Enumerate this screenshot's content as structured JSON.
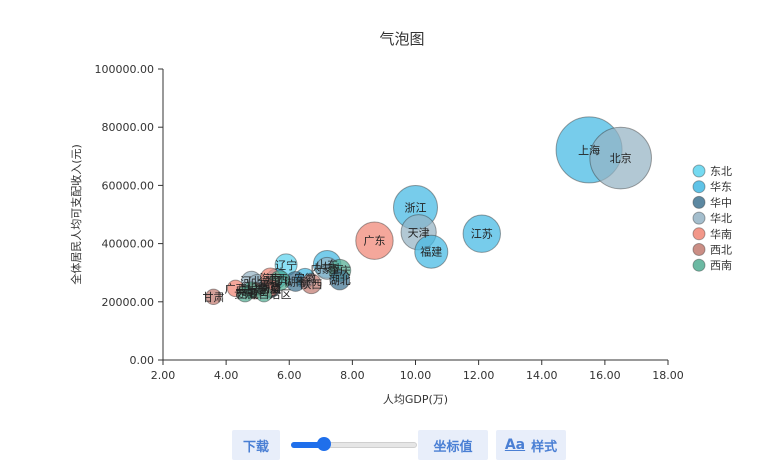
{
  "toolbar": {
    "download_label": "下载",
    "coord_label": "坐标值",
    "style_icon": "Aa",
    "style_label": "样式",
    "slider_value": 0.25
  },
  "chart_data": {
    "type": "scatter",
    "title": "气泡图",
    "xlabel": "人均GDP(万)",
    "ylabel": "全体居民人均可支配收入(元)",
    "xlim": [
      2,
      18
    ],
    "ylim": [
      0,
      100000
    ],
    "xticks": [
      "2.00",
      "4.00",
      "6.00",
      "8.00",
      "10.00",
      "12.00",
      "14.00",
      "16.00",
      "18.00"
    ],
    "yticks": [
      "0.00",
      "20000.00",
      "40000.00",
      "60000.00",
      "80000.00",
      "100000.00"
    ],
    "legend_position": "right",
    "grid": false,
    "series": [
      {
        "name": "东北",
        "color": "#5dd3ee",
        "points": [
          {
            "label": "辽宁",
            "x": 5.9,
            "y": 32700,
            "size": 1.0
          }
        ]
      },
      {
        "name": "华东",
        "color": "#43b8e3",
        "points": [
          {
            "label": "上海",
            "x": 15.5,
            "y": 72200,
            "size": 3.0
          },
          {
            "label": "浙江",
            "x": 10.0,
            "y": 52400,
            "size": 2.0
          },
          {
            "label": "江苏",
            "x": 12.1,
            "y": 43400,
            "size": 1.7
          },
          {
            "label": "福建",
            "x": 10.5,
            "y": 37200,
            "size": 1.5
          },
          {
            "label": "山东",
            "x": 7.2,
            "y": 32900,
            "size": 1.25
          },
          {
            "label": "安徽",
            "x": 6.5,
            "y": 28100,
            "size": 0.9
          },
          {
            "label": "江西",
            "x": 5.6,
            "y": 28000,
            "size": 0.9
          }
        ]
      },
      {
        "name": "华中",
        "color": "#3f7391",
        "points": [
          {
            "label": "湖北",
            "x": 7.6,
            "y": 27500,
            "size": 0.9
          },
          {
            "label": "湖南",
            "x": 6.2,
            "y": 27000,
            "size": 0.9
          },
          {
            "label": "河南",
            "x": 5.4,
            "y": 24800,
            "size": 0.9
          }
        ]
      },
      {
        "name": "华北",
        "color": "#94b3c4",
        "points": [
          {
            "label": "北京",
            "x": 16.5,
            "y": 69400,
            "size": 2.8
          },
          {
            "label": "天津",
            "x": 10.1,
            "y": 43900,
            "size": 1.6
          },
          {
            "label": "内蒙古",
            "x": 7.2,
            "y": 31500,
            "size": 1.0
          },
          {
            "label": "河北",
            "x": 4.8,
            "y": 27100,
            "size": 0.9
          },
          {
            "label": "山西",
            "x": 5.0,
            "y": 26000,
            "size": 0.9
          }
        ]
      },
      {
        "name": "华南",
        "color": "#f08574",
        "points": [
          {
            "label": "广东",
            "x": 8.7,
            "y": 41000,
            "size": 1.7
          },
          {
            "label": "海南",
            "x": 5.4,
            "y": 28200,
            "size": 0.9
          },
          {
            "label": "广西",
            "x": 4.3,
            "y": 24600,
            "size": 0.75
          }
        ]
      },
      {
        "name": "西北",
        "color": "#c27a70",
        "points": [
          {
            "label": "陕西",
            "x": 6.7,
            "y": 26200,
            "size": 0.9
          },
          {
            "label": "宁夏",
            "x": 5.4,
            "y": 24500,
            "size": 0.75
          },
          {
            "label": "甘肃",
            "x": 3.6,
            "y": 21700,
            "size": 0.7
          },
          {
            "label": "新疆",
            "x": 5.4,
            "y": 24800,
            "size": 0.75
          },
          {
            "label": "青海",
            "x": 4.9,
            "y": 23800,
            "size": 0.75
          }
        ]
      },
      {
        "name": "西南",
        "color": "#52ad93",
        "points": [
          {
            "label": "重庆",
            "x": 7.6,
            "y": 30800,
            "size": 1.0
          },
          {
            "label": "西藏自治区",
            "x": 5.2,
            "y": 22600,
            "size": 0.7
          },
          {
            "label": "四川",
            "x": 5.7,
            "y": 27300,
            "size": 0.9
          },
          {
            "label": "云南",
            "x": 4.8,
            "y": 24000,
            "size": 0.75
          },
          {
            "label": "贵州",
            "x": 4.6,
            "y": 22800,
            "size": 0.75
          }
        ]
      }
    ]
  }
}
